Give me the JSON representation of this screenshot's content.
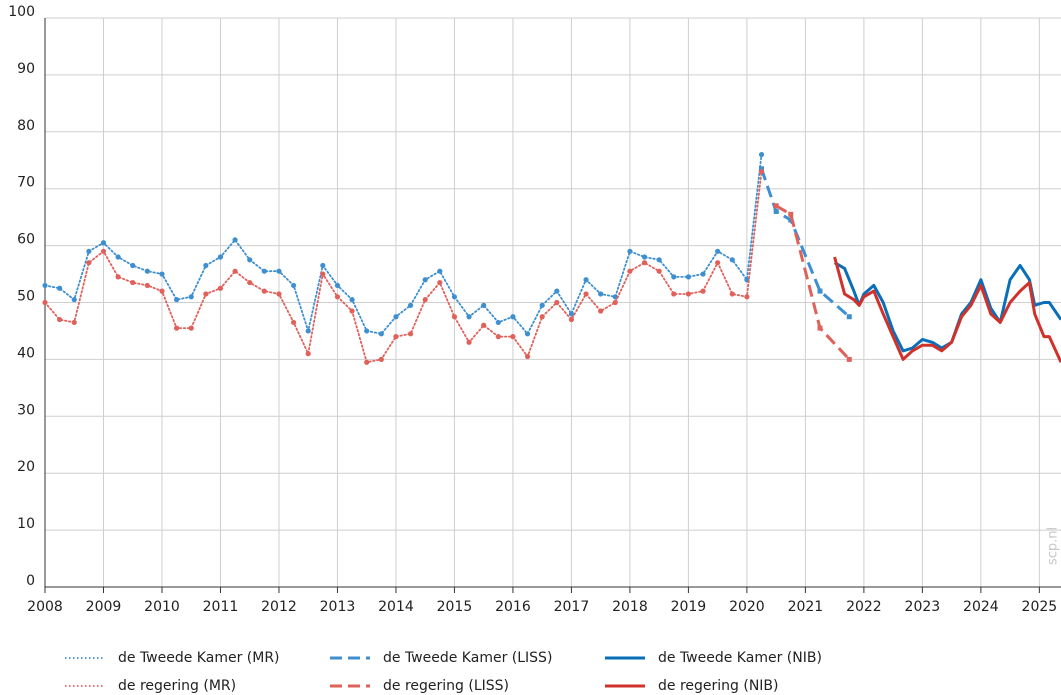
{
  "chart_data": {
    "type": "line",
    "watermark": "scp.nl",
    "xlim": [
      2008,
      2025.37
    ],
    "ylim": [
      0,
      100
    ],
    "xticks": [
      2008,
      2009,
      2010,
      2011,
      2012,
      2013,
      2014,
      2015,
      2016,
      2017,
      2018,
      2019,
      2020,
      2021,
      2022,
      2023,
      2024,
      2025
    ],
    "yticks": [
      0,
      10,
      20,
      30,
      40,
      50,
      60,
      70,
      80,
      90,
      100
    ],
    "grid": true,
    "legend": "bottom",
    "series": [
      {
        "name": "de Tweede Kamer (MR)",
        "color": "#3d8fd0",
        "dash": "dotted",
        "marker": "circle",
        "x": [
          2008,
          2008.25,
          2008.5,
          2008.75,
          2009,
          2009.25,
          2009.5,
          2009.75,
          2010,
          2010.25,
          2010.5,
          2010.75,
          2011,
          2011.25,
          2011.5,
          2011.75,
          2012,
          2012.25,
          2012.5,
          2012.75,
          2013,
          2013.25,
          2013.5,
          2013.75,
          2014,
          2014.25,
          2014.5,
          2014.75,
          2015,
          2015.25,
          2015.5,
          2015.75,
          2016,
          2016.25,
          2016.5,
          2016.75,
          2017,
          2017.25,
          2017.5,
          2017.75,
          2018,
          2018.25,
          2018.5,
          2018.75,
          2019,
          2019.25,
          2019.5,
          2019.75,
          2020,
          2020.25
        ],
        "values": [
          53,
          52.5,
          50.5,
          59,
          60.5,
          58,
          56.5,
          55.5,
          55,
          50.5,
          51,
          56.5,
          58,
          61,
          57.5,
          55.5,
          55.5,
          53,
          45,
          56.5,
          53,
          50.5,
          45,
          44.5,
          47.5,
          49.5,
          54,
          55.5,
          51,
          47.5,
          49.5,
          46.5,
          47.5,
          44.5,
          49.5,
          52,
          48,
          54,
          51.5,
          51,
          59,
          58,
          57.5,
          54.5,
          54.5,
          55,
          59,
          57.5,
          54,
          76
        ]
      },
      {
        "name": "de Tweede Kamer (LISS)",
        "color": "#3d8fd0",
        "dash": "dashed",
        "marker": "square",
        "x": [
          2020.25,
          2020.5,
          2020.75,
          2021.25,
          2021.75
        ],
        "values": [
          73.5,
          66,
          64.5,
          52,
          47.5
        ]
      },
      {
        "name": "de Tweede Kamer (NIB)",
        "color": "#0a6fb9",
        "dash": "solid",
        "x": [
          2021.5,
          2021.67,
          2021.83,
          2021.92,
          2022,
          2022.17,
          2022.33,
          2022.5,
          2022.67,
          2022.83,
          2023,
          2023.17,
          2023.33,
          2023.5,
          2023.67,
          2023.83,
          2024,
          2024.17,
          2024.33,
          2024.5,
          2024.67,
          2024.83,
          2024.92,
          2025.08,
          2025.17,
          2025.37
        ],
        "values": [
          57,
          56,
          52,
          49.5,
          51.5,
          53,
          50,
          45,
          41.5,
          42,
          43.5,
          43,
          42,
          43,
          48,
          50,
          54,
          49,
          46.5,
          54,
          56.5,
          54,
          49.5,
          50,
          50,
          47
        ]
      },
      {
        "name": "de regering (MR)",
        "color": "#e0605a",
        "dash": "dotted",
        "marker": "circle",
        "x": [
          2008,
          2008.25,
          2008.5,
          2008.75,
          2009,
          2009.25,
          2009.5,
          2009.75,
          2010,
          2010.25,
          2010.5,
          2010.75,
          2011,
          2011.25,
          2011.5,
          2011.75,
          2012,
          2012.25,
          2012.5,
          2012.75,
          2013,
          2013.25,
          2013.5,
          2013.75,
          2014,
          2014.25,
          2014.5,
          2014.75,
          2015,
          2015.25,
          2015.5,
          2015.75,
          2016,
          2016.25,
          2016.5,
          2016.75,
          2017,
          2017.25,
          2017.5,
          2017.75,
          2018,
          2018.25,
          2018.5,
          2018.75,
          2019,
          2019.25,
          2019.5,
          2019.75,
          2020,
          2020.25
        ],
        "values": [
          50,
          47,
          46.5,
          57,
          59,
          54.5,
          53.5,
          53,
          52,
          45.5,
          45.5,
          51.5,
          52.5,
          55.5,
          53.5,
          52,
          51.5,
          46.5,
          41,
          55,
          51,
          48.5,
          39.5,
          40,
          44,
          44.5,
          50.5,
          53.5,
          47.5,
          43,
          46,
          44,
          44,
          40.5,
          47.5,
          50,
          47,
          51.5,
          48.5,
          50,
          55.5,
          57,
          55.5,
          51.5,
          51.5,
          52,
          57,
          51.5,
          51,
          73
        ]
      },
      {
        "name": "de regering (LISS)",
        "color": "#e0605a",
        "dash": "dashed",
        "marker": "square",
        "x": [
          2020.5,
          2020.75,
          2021.25,
          2021.75
        ],
        "values": [
          67,
          65.5,
          45.5,
          40
        ]
      },
      {
        "name": "de regering (NIB)",
        "color": "#d0322b",
        "dash": "solid",
        "x": [
          2021.5,
          2021.67,
          2021.83,
          2021.92,
          2022,
          2022.17,
          2022.33,
          2022.5,
          2022.67,
          2022.83,
          2023,
          2023.17,
          2023.33,
          2023.5,
          2023.67,
          2023.83,
          2024,
          2024.17,
          2024.33,
          2024.5,
          2024.67,
          2024.83,
          2024.92,
          2025.08,
          2025.17,
          2025.37
        ],
        "values": [
          58,
          51.5,
          50.5,
          49.5,
          51,
          52,
          48,
          44,
          40,
          41.5,
          42.5,
          42.5,
          41.5,
          43,
          47.5,
          49.5,
          53,
          48,
          46.5,
          50,
          52,
          53.5,
          48,
          44,
          44,
          39.5
        ]
      }
    ]
  }
}
